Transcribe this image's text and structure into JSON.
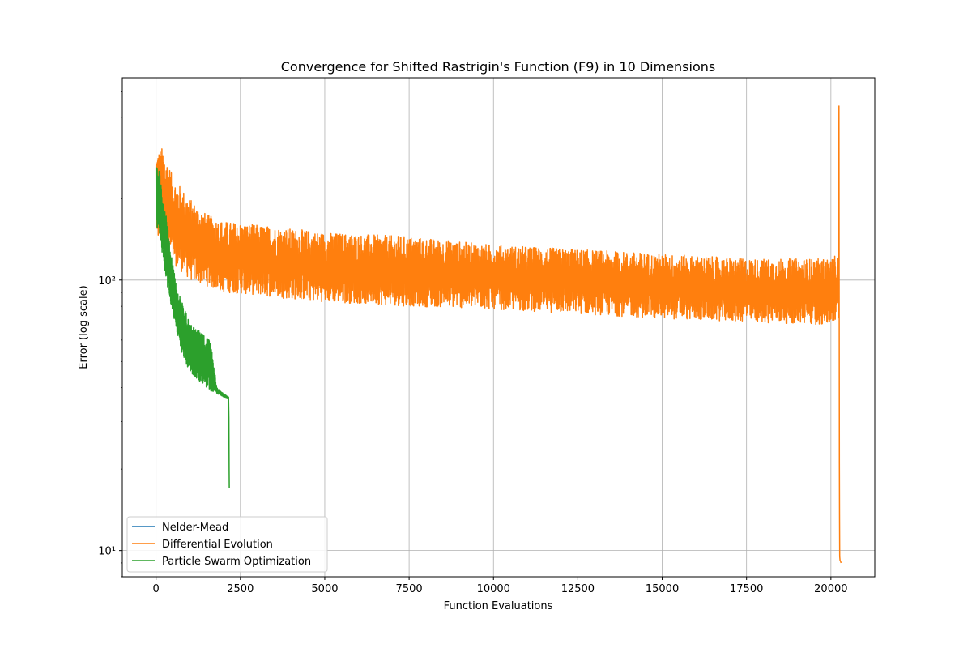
{
  "chart_data": {
    "type": "line",
    "title": "Convergence for Shifted Rastrigin's Function (F9) in 10 Dimensions",
    "xlabel": "Function Evaluations",
    "ylabel": "Error (log scale)",
    "xlim": [
      -1000,
      21300
    ],
    "ylim": [
      8,
      560
    ],
    "yscale": "log",
    "grid": true,
    "legend_position": "lower-left",
    "x_ticks": [
      0,
      2500,
      5000,
      7500,
      10000,
      12500,
      15000,
      17500,
      20000
    ],
    "x_tick_labels": [
      "0",
      "2500",
      "5000",
      "7500",
      "10000",
      "12500",
      "15000",
      "17500",
      "20000"
    ],
    "y_ticks": [
      10,
      100
    ],
    "y_tick_labels": [
      "10¹",
      "10²"
    ],
    "series": [
      {
        "name": "Nelder-Mead",
        "color": "#1f77b4",
        "x": [],
        "y": []
      },
      {
        "name": "Differential Evolution",
        "color": "#ff7f0e",
        "envelope": {
          "x": [
            0,
            200,
            500,
            1000,
            1500,
            2000,
            3000,
            4000,
            5000,
            7500,
            10000,
            12500,
            15000,
            17500,
            20000,
            20230
          ],
          "upper": [
            300,
            310,
            240,
            200,
            175,
            165,
            160,
            155,
            150,
            145,
            135,
            130,
            125,
            120,
            120,
            125
          ],
          "lower": [
            140,
            130,
            115,
            100,
            95,
            90,
            88,
            85,
            83,
            80,
            78,
            75,
            72,
            70,
            68,
            70
          ]
        },
        "x": [
          20230,
          20240,
          20250,
          20255,
          20260,
          20270,
          20290,
          20300
        ],
        "y": [
          100,
          440,
          21,
          13,
          9.5,
          9.2,
          9.1,
          9.0
        ]
      },
      {
        "name": "Particle Swarm Optimization",
        "color": "#2ca02c",
        "envelope": {
          "x": [
            0,
            100,
            200,
            300,
            400,
            500,
            600,
            700,
            800,
            900,
            1000,
            1200,
            1400,
            1600,
            1800,
            2000,
            2150
          ],
          "upper": [
            290,
            250,
            210,
            175,
            140,
            115,
            95,
            88,
            82,
            75,
            70,
            66,
            63,
            60,
            40,
            38,
            37
          ],
          "lower": [
            160,
            150,
            120,
            100,
            85,
            75,
            65,
            58,
            52,
            48,
            46,
            43,
            41,
            39,
            38,
            37,
            36.5
          ]
        },
        "x": [
          2150,
          2160,
          2165,
          2170
        ],
        "y": [
          36.5,
          31,
          20,
          17
        ]
      }
    ]
  }
}
